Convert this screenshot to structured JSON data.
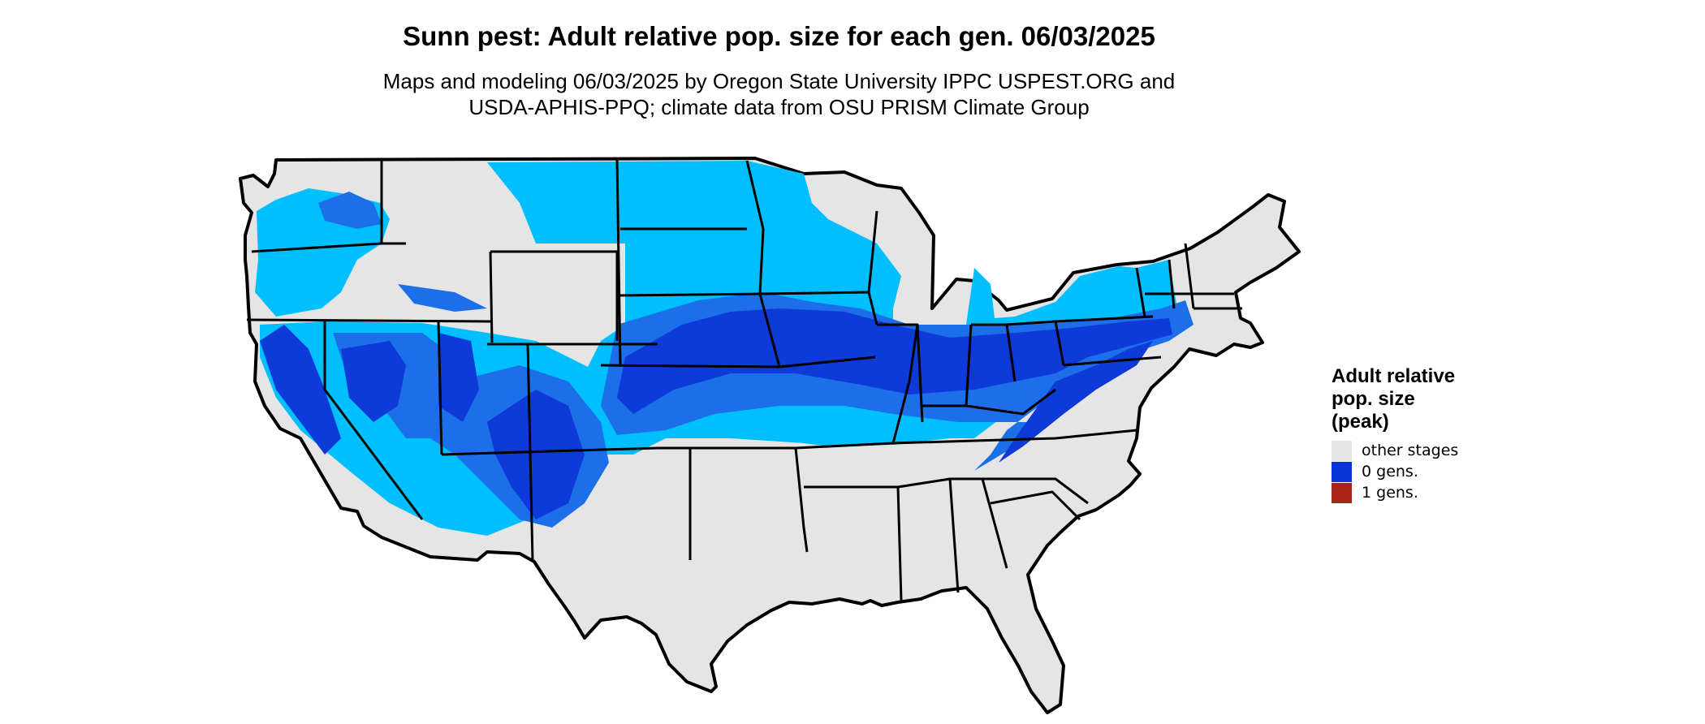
{
  "map": {
    "title": "Sunn pest: Adult relative pop. size for each gen. 06/03/2025",
    "subtitle_lines": [
      "Maps and modeling 06/03/2025 by Oregon State University IPPC USPEST.ORG and",
      "USDA-APHIS-PPQ; climate data from OSU PRISM Climate Group"
    ],
    "colors": {
      "background_land": "#e5e5e5",
      "light_blue": "#00bfff",
      "medium_blue": "#1c6fe8",
      "dark_blue": "#0d3ad8",
      "border": "#000000"
    }
  },
  "legend": {
    "title_lines": [
      "Adult relative",
      "pop. size",
      "(peak)"
    ],
    "items": [
      {
        "label": "other stages",
        "color": "#e5e5e5"
      },
      {
        "label": "0 gens.",
        "color": "#0a35d6"
      },
      {
        "label": "1 gens.",
        "color": "#a82515"
      }
    ]
  }
}
